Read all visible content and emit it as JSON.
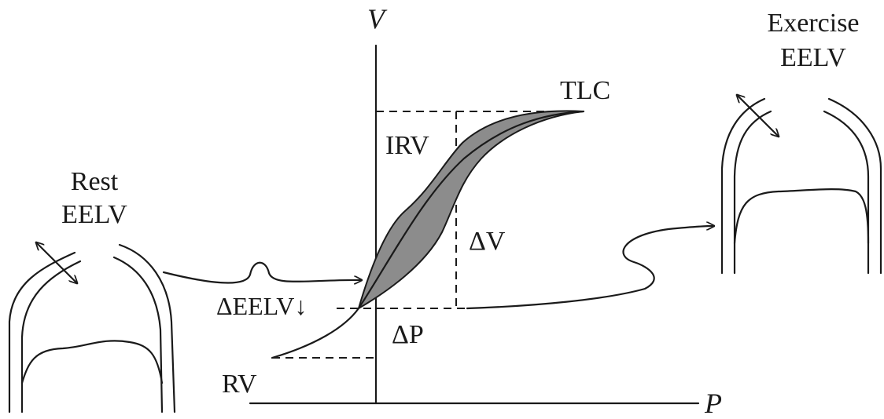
{
  "labels": {
    "v_axis": "V",
    "p_axis": "P",
    "tlc": "TLC",
    "irv": "IRV",
    "delta_v": "ΔV",
    "delta_eelv": "ΔEELV↓",
    "delta_p": "ΔP",
    "rv": "RV",
    "rest_line1": "Rest",
    "rest_line2": "EELV",
    "exercise_line1": "Exercise",
    "exercise_line2": "EELV"
  },
  "colors": {
    "ink": "#1a1a1a",
    "loop_fill": "#8c8c8c",
    "background": "#ffffff"
  }
}
